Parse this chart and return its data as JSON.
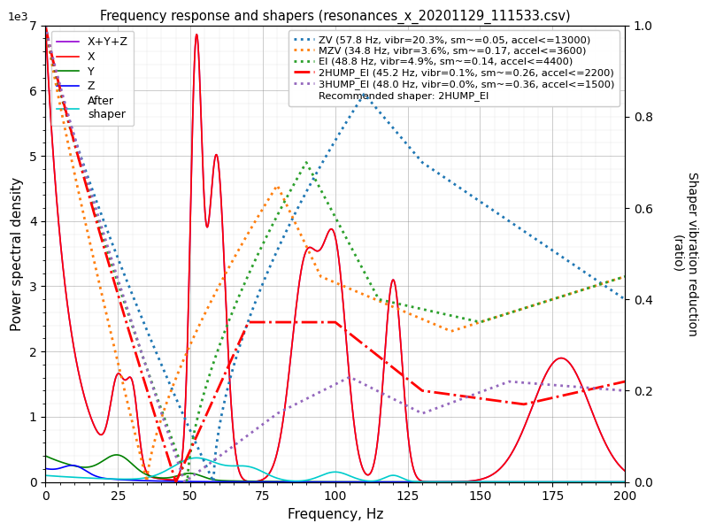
{
  "title": "Frequency response and shapers (resonances_x_20201129_111533.csv)",
  "xlabel": "Frequency, Hz",
  "ylabel_left": "Power spectral density",
  "ylabel_right": "Shaper vibration reduction\n(ratio)",
  "xlim": [
    0,
    200
  ],
  "ylim_left": [
    0,
    7000
  ],
  "ylim_right": [
    0,
    1.0
  ],
  "yticks_left": [
    0,
    1000,
    2000,
    3000,
    4000,
    5000,
    6000,
    7000
  ],
  "ytick_labels_left": [
    "0",
    "1",
    "2",
    "3",
    "4",
    "5",
    "6",
    "7"
  ],
  "legend_psd": [
    {
      "label": "X+Y+Z",
      "color": "#9400D3",
      "ls": "solid",
      "lw": 1.2
    },
    {
      "label": "X",
      "color": "#FF0000",
      "ls": "solid",
      "lw": 1.2
    },
    {
      "label": "Y",
      "color": "#008000",
      "ls": "solid",
      "lw": 1.2
    },
    {
      "label": "Z",
      "color": "#0000FF",
      "ls": "solid",
      "lw": 1.2
    },
    {
      "label": "After\nshaper",
      "color": "#00CCCC",
      "ls": "solid",
      "lw": 1.2
    }
  ],
  "legend_shapers": [
    {
      "label": "ZV (57.8 Hz, vibr=20.3%, sm~=0.05, accel<=13000)",
      "color": "#1F77B4",
      "ls": "dotted",
      "lw": 2.0
    },
    {
      "label": "MZV (34.8 Hz, vibr=3.6%, sm~=0.17, accel<=3600)",
      "color": "#FF7F0E",
      "ls": "dotted",
      "lw": 2.0
    },
    {
      "label": "EI (48.8 Hz, vibr=4.9%, sm~=0.14, accel<=4400)",
      "color": "#2CA02C",
      "ls": "dotted",
      "lw": 2.0
    },
    {
      "label": "2HUMP_EI (45.2 Hz, vibr=0.1%, sm~=0.26, accel<=2200)",
      "color": "#FF0000",
      "ls": "dashdot",
      "lw": 2.0
    },
    {
      "label": "3HUMP_EI (48.0 Hz, vibr=0.0%, sm~=0.36, accel<=1500)",
      "color": "#9467BD",
      "ls": "dotted",
      "lw": 2.0
    }
  ],
  "recommended": "Recommended shaper: 2HUMP_EI",
  "background_color": "#FFFFFF",
  "grid_color": "#AAAAAA"
}
